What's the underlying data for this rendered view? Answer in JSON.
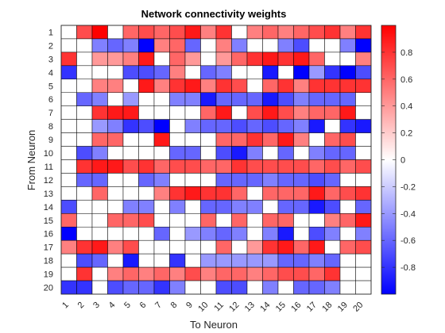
{
  "chart_data": {
    "type": "heatmap",
    "title": "Network connectivity weights",
    "xlabel": "To Neuron",
    "ylabel": "From Neuron",
    "x_categories": [
      "1",
      "2",
      "3",
      "4",
      "5",
      "6",
      "7",
      "8",
      "9",
      "10",
      "11",
      "12",
      "13",
      "14",
      "15",
      "16",
      "17",
      "18",
      "19",
      "20"
    ],
    "y_categories": [
      "1",
      "2",
      "3",
      "4",
      "5",
      "6",
      "7",
      "8",
      "9",
      "10",
      "11",
      "12",
      "13",
      "14",
      "15",
      "16",
      "17",
      "18",
      "19",
      "20"
    ],
    "colorbar": {
      "range": [
        -1,
        1
      ],
      "ticks": [
        -0.8,
        -0.6,
        -0.4,
        -0.2,
        0,
        0.2,
        0.4,
        0.6,
        0.8
      ],
      "tick_labels": [
        "-0.8",
        "-0.6",
        "-0.4",
        "-0.2",
        "0",
        "0.2",
        "0.4",
        "0.6",
        "0.8"
      ],
      "colormap": [
        "#0000ff",
        "#ffffff",
        "#ff0000"
      ]
    },
    "values": [
      [
        0,
        0.7,
        1.0,
        0,
        0.6,
        0.7,
        0.6,
        0.7,
        0.9,
        0.5,
        0.8,
        0,
        0.5,
        0.6,
        0.5,
        0.6,
        0.7,
        0.8,
        0.5,
        0.8
      ],
      [
        0,
        0,
        -0.5,
        -0.6,
        -0.5,
        -1.0,
        0.5,
        0.6,
        -0.6,
        0,
        0.5,
        -0.5,
        0,
        0,
        -0.5,
        -0.7,
        0,
        0,
        -0.5,
        -1.0
      ],
      [
        0.8,
        0,
        0.4,
        0.4,
        0.5,
        0.9,
        0,
        0.6,
        0.4,
        0,
        0.4,
        0.6,
        0.8,
        0.9,
        0.8,
        0.9,
        0.6,
        0,
        0,
        0.5
      ],
      [
        -0.8,
        0,
        0,
        0,
        -0.7,
        -0.7,
        -0.6,
        0.5,
        0,
        -0.6,
        -0.5,
        0,
        0,
        -0.9,
        0,
        -1.0,
        -0.4,
        -0.8,
        -1.0,
        -0.7
      ],
      [
        0,
        0,
        0.5,
        0.5,
        0,
        0.9,
        0.5,
        0.8,
        0.9,
        0.5,
        0.8,
        0.7,
        0,
        0.6,
        0.8,
        0.5,
        0.8,
        0.8,
        0.8,
        0.8
      ],
      [
        0,
        -0.6,
        -0.5,
        0,
        -0.4,
        0,
        0,
        -0.5,
        -0.5,
        -0.9,
        -0.6,
        -0.6,
        -0.6,
        -0.9,
        -0.7,
        -0.5,
        -0.6,
        -0.6,
        -0.6,
        0
      ],
      [
        0,
        0,
        0.8,
        0.9,
        0.9,
        0,
        0,
        0,
        0,
        0.6,
        0.9,
        0,
        0.7,
        0.9,
        0.7,
        0.5,
        0.6,
        0.6,
        0.9,
        0
      ],
      [
        0,
        0,
        -0.4,
        -0.5,
        -0.8,
        -0.7,
        -1.0,
        0,
        -0.5,
        -0.6,
        -0.6,
        -0.7,
        -0.6,
        -0.7,
        -0.6,
        -0.5,
        -0.9,
        0,
        -0.8,
        -0.9
      ],
      [
        0,
        0,
        0.6,
        0.6,
        0,
        0,
        0.9,
        0,
        0,
        0,
        0.6,
        0.6,
        0.8,
        0.6,
        0.9,
        0.5,
        0,
        0.6,
        0.7,
        0
      ],
      [
        0,
        -0.7,
        -0.5,
        0,
        0,
        0,
        0,
        -0.6,
        -0.6,
        0,
        -0.7,
        -0.9,
        -0.5,
        0,
        -0.6,
        0,
        -0.5,
        -0.6,
        -0.6,
        0
      ],
      [
        0,
        0.8,
        0.9,
        0.9,
        0.7,
        0.8,
        0.6,
        0.7,
        0.7,
        0.6,
        0.6,
        0.8,
        0.7,
        0.7,
        0.7,
        0.7,
        0.6,
        0.7,
        0.6,
        0.7
      ],
      [
        0,
        -0.6,
        -0.6,
        0,
        0,
        -0.6,
        -0.5,
        0,
        0,
        0,
        -0.6,
        -0.6,
        -0.6,
        -0.5,
        -0.6,
        -0.6,
        -0.7,
        -0.6,
        0,
        0
      ],
      [
        0,
        0,
        0.6,
        0,
        0,
        0,
        0.5,
        0.8,
        0.9,
        0.8,
        0.8,
        0.6,
        0,
        0.6,
        0.6,
        0.6,
        0.9,
        0.6,
        0.7,
        0.8
      ],
      [
        -0.7,
        0,
        0,
        0,
        -0.5,
        -0.5,
        0,
        -0.5,
        0,
        -0.6,
        -0.6,
        -0.5,
        -0.5,
        0,
        -0.6,
        -0.6,
        -0.9,
        -0.7,
        0,
        -0.6
      ],
      [
        0.6,
        0,
        0,
        0.6,
        0.6,
        0.7,
        0,
        0,
        0,
        0.6,
        0,
        0.6,
        0,
        0.6,
        0.6,
        0,
        0,
        0.5,
        0.6,
        0.9
      ],
      [
        -1.0,
        0,
        0,
        0,
        0,
        0,
        -0.6,
        0,
        -0.4,
        -0.5,
        -0.6,
        -0.5,
        0,
        -0.5,
        -0.9,
        0,
        -0.7,
        -0.5,
        0,
        -0.5
      ],
      [
        0.5,
        0.8,
        0.9,
        0.5,
        0.7,
        0,
        0,
        0,
        0,
        0,
        0.6,
        0,
        0.4,
        0.8,
        0.9,
        0.6,
        0.9,
        0,
        0.6,
        0.7
      ],
      [
        0,
        -0.7,
        -0.6,
        0,
        -0.9,
        0,
        0,
        -0.8,
        0,
        -0.4,
        -0.4,
        -0.4,
        -0.4,
        -0.4,
        -0.6,
        -0.6,
        -0.5,
        -0.6,
        0,
        0
      ],
      [
        0,
        0.8,
        0,
        0.5,
        0.6,
        0.5,
        0.6,
        0.5,
        0.7,
        0.5,
        0.6,
        0.6,
        0.5,
        0.6,
        0.7,
        0.7,
        0.6,
        0.8,
        0,
        0
      ],
      [
        -0.8,
        -0.8,
        0,
        -0.7,
        -0.6,
        -0.6,
        -0.8,
        -0.5,
        0,
        0,
        -0.7,
        -0.7,
        0,
        -0.5,
        0,
        -0.6,
        -0.6,
        -0.5,
        0,
        0
      ]
    ]
  }
}
